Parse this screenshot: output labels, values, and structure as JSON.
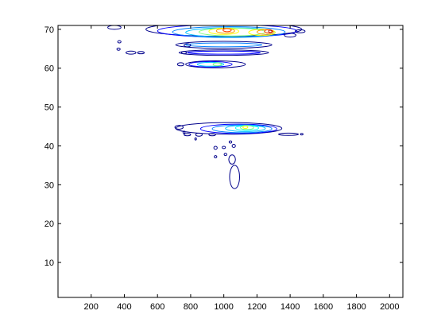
{
  "chart_data": {
    "type": "contour",
    "title": "",
    "xlabel": "",
    "ylabel": "",
    "xlim": [
      0,
      2080
    ],
    "ylim": [
      1,
      71
    ],
    "x_ticks": [
      200,
      400,
      600,
      800,
      1000,
      1200,
      1400,
      1600,
      1800,
      2000
    ],
    "y_ticks": [
      10,
      20,
      30,
      40,
      50,
      60,
      70
    ],
    "colormap": "jet",
    "grid": false,
    "legend": "none",
    "contour_levels": [
      "#00008b",
      "#0000ff",
      "#0080ff",
      "#00c0ff",
      "#00ffff",
      "#80ff80",
      "#ffff00",
      "#ffa000",
      "#ff4000",
      "#b00000"
    ],
    "regions": [
      {
        "name": "top-band",
        "rings": [
          {
            "level": 0,
            "cx": 1000,
            "cy": 70.0,
            "rx": 470,
            "ry": 1.8
          },
          {
            "level": 1,
            "cx": 1020,
            "cy": 69.6,
            "rx": 420,
            "ry": 1.6
          },
          {
            "level": 2,
            "cx": 1030,
            "cy": 69.3,
            "rx": 340,
            "ry": 1.4
          },
          {
            "level": 3,
            "cx": 1040,
            "cy": 69.2,
            "rx": 270,
            "ry": 1.2
          },
          {
            "level": 5,
            "cx": 1050,
            "cy": 69.3,
            "rx": 200,
            "ry": 1.0
          },
          {
            "level": 6,
            "cx": 1000,
            "cy": 69.5,
            "rx": 90,
            "ry": 0.8
          },
          {
            "level": 6,
            "cx": 1230,
            "cy": 69.2,
            "rx": 80,
            "ry": 0.8
          },
          {
            "level": 7,
            "cx": 1010,
            "cy": 69.6,
            "rx": 55,
            "ry": 0.6
          },
          {
            "level": 7,
            "cx": 1250,
            "cy": 69.3,
            "rx": 50,
            "ry": 0.6
          },
          {
            "level": 8,
            "cx": 1020,
            "cy": 69.8,
            "rx": 25,
            "ry": 0.4
          },
          {
            "level": 8,
            "cx": 1270,
            "cy": 69.5,
            "rx": 25,
            "ry": 0.4
          },
          {
            "level": 9,
            "cx": 1280,
            "cy": 69.5,
            "rx": 10,
            "ry": 0.3
          }
        ]
      },
      {
        "name": "band-66",
        "rings": [
          {
            "level": 0,
            "cx": 1000,
            "cy": 66.0,
            "rx": 290,
            "ry": 0.9
          },
          {
            "level": 2,
            "cx": 1000,
            "cy": 66.0,
            "rx": 230,
            "ry": 0.5
          }
        ]
      },
      {
        "name": "band-64",
        "rings": [
          {
            "level": 0,
            "cx": 1000,
            "cy": 64.0,
            "rx": 270,
            "ry": 0.7
          },
          {
            "level": 1,
            "cx": 1000,
            "cy": 64.0,
            "rx": 220,
            "ry": 0.4
          }
        ]
      },
      {
        "name": "band-61",
        "rings": [
          {
            "level": 0,
            "cx": 950,
            "cy": 61.0,
            "rx": 180,
            "ry": 0.9
          },
          {
            "level": 1,
            "cx": 920,
            "cy": 61.0,
            "rx": 130,
            "ry": 0.7
          },
          {
            "level": 3,
            "cx": 920,
            "cy": 61.0,
            "rx": 80,
            "ry": 0.5
          },
          {
            "level": 5,
            "cx": 960,
            "cy": 61.0,
            "rx": 25,
            "ry": 0.35
          }
        ]
      },
      {
        "name": "cluster-44",
        "rings": [
          {
            "level": 0,
            "cx": 1030,
            "cy": 44.5,
            "rx": 320,
            "ry": 1.5
          },
          {
            "level": 1,
            "cx": 1090,
            "cy": 44.4,
            "rx": 230,
            "ry": 1.2
          },
          {
            "level": 2,
            "cx": 1110,
            "cy": 44.4,
            "rx": 180,
            "ry": 1.0
          },
          {
            "level": 3,
            "cx": 1130,
            "cy": 44.5,
            "rx": 120,
            "ry": 0.8
          },
          {
            "level": 4,
            "cx": 1140,
            "cy": 44.6,
            "rx": 70,
            "ry": 0.6
          },
          {
            "level": 5,
            "cx": 1140,
            "cy": 44.7,
            "rx": 40,
            "ry": 0.5
          },
          {
            "level": 6,
            "cx": 1130,
            "cy": 44.8,
            "rx": 15,
            "ry": 0.3
          }
        ]
      },
      {
        "name": "stem",
        "rings": [
          {
            "level": 0,
            "cx": 1065,
            "cy": 32.0,
            "rx": 30,
            "ry": 3.0
          },
          {
            "level": 0,
            "cx": 1050,
            "cy": 36.5,
            "rx": 20,
            "ry": 1.2
          }
        ]
      },
      {
        "name": "specks",
        "rings": [
          {
            "level": 0,
            "cx": 370,
            "cy": 66.8,
            "rx": 10,
            "ry": 0.3
          },
          {
            "level": 0,
            "cx": 365,
            "cy": 64.9,
            "rx": 10,
            "ry": 0.3
          },
          {
            "level": 0,
            "cx": 440,
            "cy": 64.0,
            "rx": 30,
            "ry": 0.4
          },
          {
            "level": 0,
            "cx": 500,
            "cy": 64.0,
            "rx": 20,
            "ry": 0.3
          },
          {
            "level": 0,
            "cx": 340,
            "cy": 70.5,
            "rx": 40,
            "ry": 0.5
          },
          {
            "level": 0,
            "cx": 780,
            "cy": 65.9,
            "rx": 20,
            "ry": 0.4
          },
          {
            "level": 0,
            "cx": 760,
            "cy": 64.0,
            "rx": 15,
            "ry": 0.3
          },
          {
            "level": 0,
            "cx": 740,
            "cy": 61.0,
            "rx": 20,
            "ry": 0.4
          },
          {
            "level": 0,
            "cx": 1460,
            "cy": 69.5,
            "rx": 30,
            "ry": 0.4
          },
          {
            "level": 0,
            "cx": 1400,
            "cy": 68.5,
            "rx": 35,
            "ry": 0.5
          },
          {
            "level": 0,
            "cx": 730,
            "cy": 44.8,
            "rx": 25,
            "ry": 0.5
          },
          {
            "level": 0,
            "cx": 780,
            "cy": 42.9,
            "rx": 20,
            "ry": 0.3
          },
          {
            "level": 0,
            "cx": 850,
            "cy": 42.9,
            "rx": 20,
            "ry": 0.4
          },
          {
            "level": 0,
            "cx": 830,
            "cy": 41.8,
            "rx": 5,
            "ry": 0.3
          },
          {
            "level": 0,
            "cx": 930,
            "cy": 42.9,
            "rx": 20,
            "ry": 0.3
          },
          {
            "level": 0,
            "cx": 1390,
            "cy": 43.0,
            "rx": 60,
            "ry": 0.3
          },
          {
            "level": 0,
            "cx": 1470,
            "cy": 43.0,
            "rx": 8,
            "ry": 0.2
          },
          {
            "level": 0,
            "cx": 950,
            "cy": 39.5,
            "rx": 10,
            "ry": 0.4
          },
          {
            "level": 0,
            "cx": 1000,
            "cy": 39.6,
            "rx": 10,
            "ry": 0.3
          },
          {
            "level": 0,
            "cx": 1060,
            "cy": 40.0,
            "rx": 10,
            "ry": 0.4
          },
          {
            "level": 0,
            "cx": 950,
            "cy": 37.2,
            "rx": 8,
            "ry": 0.3
          },
          {
            "level": 0,
            "cx": 1010,
            "cy": 37.8,
            "rx": 8,
            "ry": 0.3
          },
          {
            "level": 0,
            "cx": 1040,
            "cy": 41.0,
            "rx": 8,
            "ry": 0.3
          },
          {
            "level": 0,
            "cx": 760,
            "cy": 43.5,
            "rx": 6,
            "ry": 0.3
          }
        ]
      }
    ]
  }
}
